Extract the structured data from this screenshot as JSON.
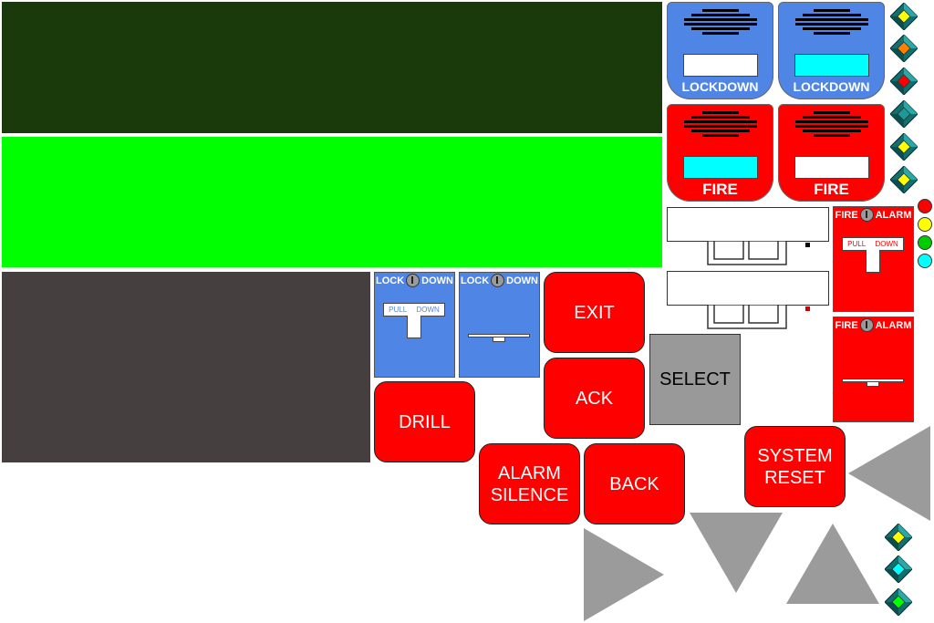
{
  "colors": {
    "panel_dark_green": "#1a3a0c",
    "panel_bright_green": "#00ff00",
    "panel_dark_gray": "#453f3f",
    "lockdown_blue": "#4f86e6",
    "fire_red": "#ff0000",
    "select_gray": "#999999",
    "arrow_gray": "#9b9b9b",
    "lens_white": "#ffffff",
    "lens_cyan": "#00ffff"
  },
  "strobes": [
    {
      "caption": "LOCKDOWN",
      "color": "#4f86e6",
      "lens": "#ffffff"
    },
    {
      "caption": "LOCKDOWN",
      "color": "#4f86e6",
      "lens": "#00ffff"
    },
    {
      "caption": "FIRE",
      "color": "#ff0000",
      "lens": "#00ffff"
    },
    {
      "caption": "FIRE",
      "color": "#ff0000",
      "lens": "#ffffff"
    }
  ],
  "pull_stations": {
    "lockdown_left": "LOCK",
    "lockdown_right": "DOWN",
    "fire_left": "FIRE",
    "fire_right": "ALARM",
    "pull_label": "PULL",
    "down_label": "DOWN"
  },
  "buttons": {
    "exit": "EXIT",
    "ack": "ACK",
    "drill": "DRILL",
    "alarm_silence_line1": "ALARM",
    "alarm_silence_line2": "SILENCE",
    "back": "BACK",
    "select": "SELECT",
    "system_reset_line1": "SYSTEM",
    "system_reset_line2": "RESET"
  },
  "leds": [
    "#ff0000",
    "#ffff00",
    "#00cc00",
    "#00ffff"
  ],
  "gems": [
    "#ffff00",
    "#ff8000",
    "#ff0000",
    "#1a9a9a",
    "#ffff00",
    "#ffff00",
    "#ffff00",
    "#00ffff",
    "#00ff00"
  ]
}
